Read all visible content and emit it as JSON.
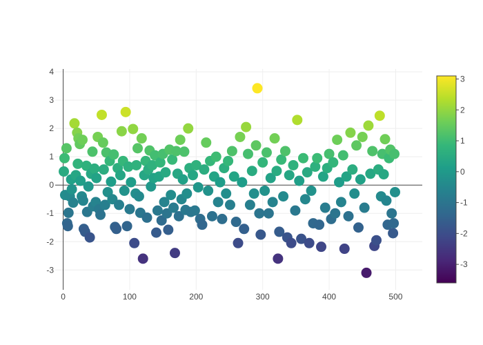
{
  "chart_data": {
    "type": "scatter",
    "title": "",
    "xlabel": "",
    "ylabel": "",
    "xlim": [
      -12,
      540
    ],
    "ylim": [
      -3.7,
      4.1
    ],
    "x_ticks": [
      0,
      100,
      200,
      300,
      400,
      500
    ],
    "y_ticks": [
      -3,
      -2,
      -1,
      0,
      1,
      2,
      3,
      4
    ],
    "grid": true,
    "zero_lines": true,
    "legend": "none",
    "colorbar": {
      "position": "right",
      "min": -3.6,
      "max": 3.1,
      "ticks": [
        -3,
        -2,
        -1,
        0,
        1,
        2,
        3
      ],
      "colorscale": "viridis"
    },
    "series": [
      {
        "marker_size": 15,
        "color_by": "y",
        "points": [
          [
            1,
            0.48
          ],
          [
            2,
            0.95
          ],
          [
            3,
            -0.35
          ],
          [
            5,
            1.3
          ],
          [
            6,
            -1.35
          ],
          [
            7,
            -1.45
          ],
          [
            8,
            -0.98
          ],
          [
            10,
            -0.4
          ],
          [
            12,
            0.2
          ],
          [
            13,
            -0.15
          ],
          [
            15,
            -0.62
          ],
          [
            17,
            2.18
          ],
          [
            19,
            0.35
          ],
          [
            21,
            1.85
          ],
          [
            22,
            0.75
          ],
          [
            23,
            1.65
          ],
          [
            25,
            1.45
          ],
          [
            26,
            0.15
          ],
          [
            28,
            -0.4
          ],
          [
            29,
            1.6
          ],
          [
            30,
            -0.55
          ],
          [
            31,
            -1.55
          ],
          [
            33,
            -1.65
          ],
          [
            35,
            0.68
          ],
          [
            36,
            -0.95
          ],
          [
            38,
            -0.05
          ],
          [
            40,
            -1.85
          ],
          [
            42,
            0.4
          ],
          [
            44,
            1.18
          ],
          [
            45,
            -0.75
          ],
          [
            47,
            0.58
          ],
          [
            49,
            -0.6
          ],
          [
            50,
            0.25
          ],
          [
            52,
            1.7
          ],
          [
            54,
            -0.85
          ],
          [
            56,
            -1.05
          ],
          [
            58,
            2.48
          ],
          [
            60,
            1.5
          ],
          [
            61,
            0.55
          ],
          [
            63,
            -0.7
          ],
          [
            65,
            1.15
          ],
          [
            67,
            -0.25
          ],
          [
            70,
            0.85
          ],
          [
            72,
            0.12
          ],
          [
            74,
            -0.5
          ],
          [
            76,
            1.08
          ],
          [
            78,
            -1.48
          ],
          [
            80,
            -1.55
          ],
          [
            82,
            0.6
          ],
          [
            84,
            -0.7
          ],
          [
            86,
            0.35
          ],
          [
            88,
            1.9
          ],
          [
            90,
            0.85
          ],
          [
            92,
            -0.2
          ],
          [
            94,
            2.58
          ],
          [
            96,
            -1.45
          ],
          [
            98,
            0.65
          ],
          [
            100,
            -0.85
          ],
          [
            102,
            0.1
          ],
          [
            105,
            1.98
          ],
          [
            107,
            -2.05
          ],
          [
            109,
            -0.3
          ],
          [
            110,
            0.7
          ],
          [
            112,
            1.3
          ],
          [
            114,
            -0.4
          ],
          [
            116,
            -0.98
          ],
          [
            118,
            1.65
          ],
          [
            120,
            -2.6
          ],
          [
            122,
            0.35
          ],
          [
            124,
            0.85
          ],
          [
            126,
            -1.15
          ],
          [
            128,
            0.55
          ],
          [
            130,
            1.22
          ],
          [
            132,
            -0.05
          ],
          [
            134,
            0.7
          ],
          [
            136,
            0.25
          ],
          [
            138,
            1.05
          ],
          [
            140,
            -1.68
          ],
          [
            142,
            -0.9
          ],
          [
            144,
            0.3
          ],
          [
            146,
            0.8
          ],
          [
            148,
            -1.25
          ],
          [
            150,
            1.1
          ],
          [
            152,
            -0.6
          ],
          [
            154,
            0.45
          ],
          [
            156,
            -1.0
          ],
          [
            158,
            -1.58
          ],
          [
            160,
            1.25
          ],
          [
            162,
            -0.35
          ],
          [
            164,
            0.9
          ],
          [
            166,
            -0.8
          ],
          [
            168,
            -2.4
          ],
          [
            170,
            1.2
          ],
          [
            172,
            0.4
          ],
          [
            174,
            -1.1
          ],
          [
            176,
            1.6
          ],
          [
            178,
            -0.5
          ],
          [
            180,
            0.2
          ],
          [
            182,
            1.18
          ],
          [
            184,
            -0.88
          ],
          [
            186,
            -0.3
          ],
          [
            188,
            2.0
          ],
          [
            190,
            0.6
          ],
          [
            192,
            -0.95
          ],
          [
            195,
            0.35
          ],
          [
            198,
            -0.9
          ],
          [
            200,
            0.7
          ],
          [
            203,
            -0.08
          ],
          [
            206,
            -1.2
          ],
          [
            209,
            -1.4
          ],
          [
            212,
            0.55
          ],
          [
            215,
            1.5
          ],
          [
            218,
            -0.2
          ],
          [
            221,
            0.85
          ],
          [
            224,
            -1.1
          ],
          [
            227,
            0.3
          ],
          [
            230,
            1.0
          ],
          [
            233,
            -0.6
          ],
          [
            236,
            0.1
          ],
          [
            239,
            -1.2
          ],
          [
            242,
            0.6
          ],
          [
            245,
            -0.3
          ],
          [
            248,
            0.85
          ],
          [
            251,
            -0.7
          ],
          [
            254,
            1.2
          ],
          [
            257,
            0.3
          ],
          [
            260,
            -1.3
          ],
          [
            263,
            -2.05
          ],
          [
            266,
            1.7
          ],
          [
            269,
            0.1
          ],
          [
            272,
            -1.55
          ],
          [
            275,
            2.05
          ],
          [
            278,
            1.1
          ],
          [
            281,
            -0.7
          ],
          [
            284,
            0.5
          ],
          [
            287,
            -0.3
          ],
          [
            290,
            1.4
          ],
          [
            292,
            3.42
          ],
          [
            295,
            -1.0
          ],
          [
            297,
            -1.75
          ],
          [
            300,
            0.8
          ],
          [
            303,
            -0.2
          ],
          [
            306,
            1.15
          ],
          [
            309,
            -1.0
          ],
          [
            312,
            0.25
          ],
          [
            315,
            -0.6
          ],
          [
            318,
            1.65
          ],
          [
            321,
            0.5
          ],
          [
            323,
            -2.6
          ],
          [
            325,
            -1.65
          ],
          [
            328,
            0.9
          ],
          [
            331,
            -0.4
          ],
          [
            334,
            1.2
          ],
          [
            337,
            -1.85
          ],
          [
            340,
            0.35
          ],
          [
            343,
            -2.05
          ],
          [
            346,
            0.7
          ],
          [
            349,
            -0.9
          ],
          [
            352,
            2.3
          ],
          [
            355,
            0.15
          ],
          [
            358,
            -1.9
          ],
          [
            361,
            0.95
          ],
          [
            364,
            -0.5
          ],
          [
            367,
            0.45
          ],
          [
            370,
            -2.05
          ],
          [
            373,
            -0.2
          ],
          [
            376,
            -1.35
          ],
          [
            379,
            0.65
          ],
          [
            382,
            0.95
          ],
          [
            385,
            -1.4
          ],
          [
            388,
            -2.18
          ],
          [
            391,
            0.3
          ],
          [
            394,
            -0.8
          ],
          [
            397,
            0.6
          ],
          [
            400,
            1.1
          ],
          [
            403,
            -1.2
          ],
          [
            406,
            0.8
          ],
          [
            409,
            -1.0
          ],
          [
            412,
            1.6
          ],
          [
            415,
            0.1
          ],
          [
            418,
            -0.6
          ],
          [
            421,
            1.05
          ],
          [
            423,
            -2.25
          ],
          [
            426,
            0.3
          ],
          [
            429,
            -1.1
          ],
          [
            432,
            1.85
          ],
          [
            435,
            0.55
          ],
          [
            438,
            -0.3
          ],
          [
            441,
            1.4
          ],
          [
            444,
            -1.5
          ],
          [
            447,
            0.2
          ],
          [
            450,
            1.7
          ],
          [
            453,
            -0.8
          ],
          [
            456,
            -3.1
          ],
          [
            459,
            2.1
          ],
          [
            462,
            0.4
          ],
          [
            465,
            1.2
          ],
          [
            468,
            -2.15
          ],
          [
            471,
            -1.95
          ],
          [
            474,
            0.55
          ],
          [
            476,
            2.45
          ],
          [
            478,
            -0.4
          ],
          [
            480,
            1.1
          ],
          [
            482,
            0.38
          ],
          [
            484,
            1.62
          ],
          [
            486,
            -0.55
          ],
          [
            488,
            -1.4
          ],
          [
            490,
            0.95
          ],
          [
            492,
            1.25
          ],
          [
            494,
            -1.0
          ],
          [
            496,
            -1.7
          ],
          [
            497,
            -1.35
          ],
          [
            498,
            1.1
          ],
          [
            499,
            -0.25
          ]
        ]
      }
    ]
  }
}
